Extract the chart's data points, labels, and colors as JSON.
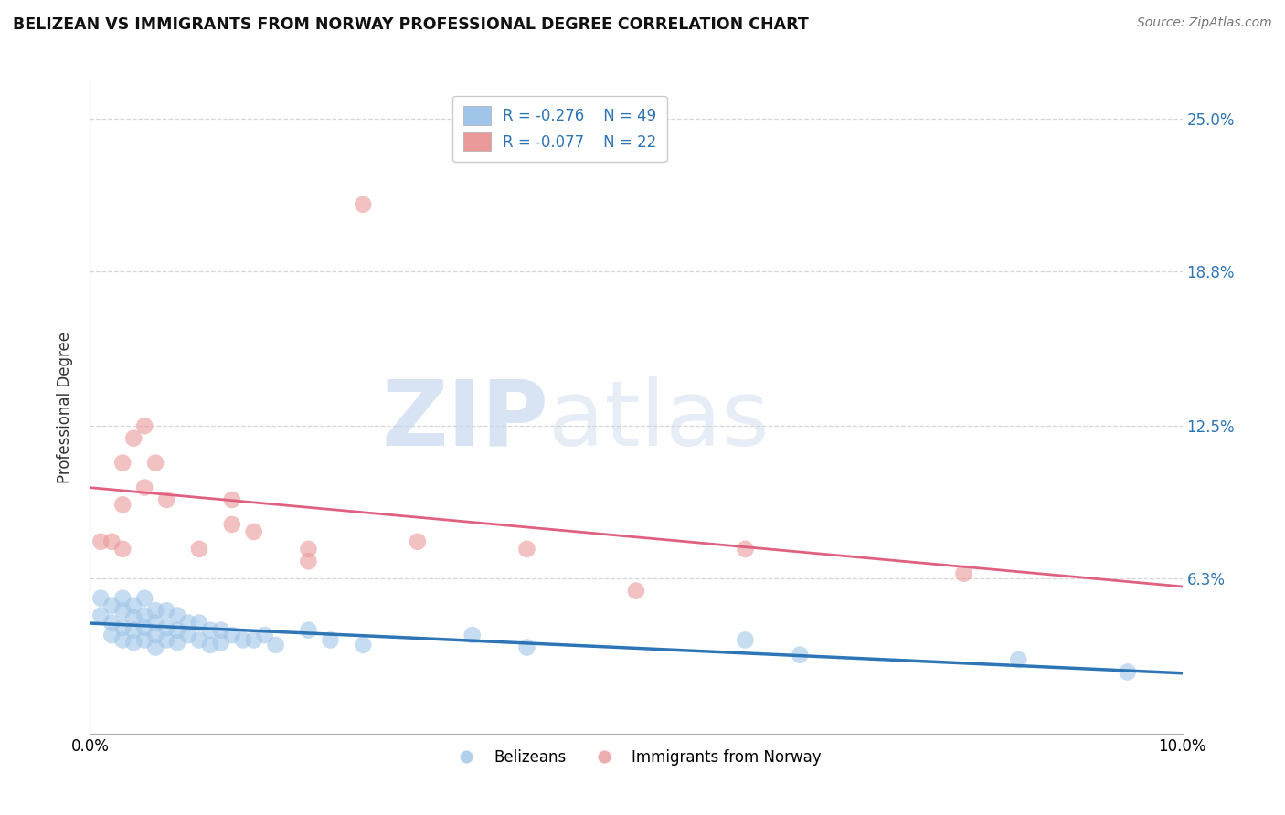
{
  "title": "BELIZEAN VS IMMIGRANTS FROM NORWAY PROFESSIONAL DEGREE CORRELATION CHART",
  "source": "Source: ZipAtlas.com",
  "ylabel_label": "Professional Degree",
  "xlim": [
    0.0,
    0.1
  ],
  "ylim": [
    0.0,
    0.265
  ],
  "ytick_labels_right": [
    "6.3%",
    "12.5%",
    "18.8%",
    "25.0%"
  ],
  "ytick_vals_right": [
    0.063,
    0.125,
    0.188,
    0.25
  ],
  "blue_color": "#9fc5e8",
  "pink_color": "#ea9999",
  "blue_line_color": "#2e75b6",
  "pink_line_color": "#e06080",
  "scatter_alpha": 0.6,
  "blue_points": [
    [
      0.001,
      0.055
    ],
    [
      0.001,
      0.048
    ],
    [
      0.002,
      0.052
    ],
    [
      0.002,
      0.045
    ],
    [
      0.002,
      0.04
    ],
    [
      0.003,
      0.055
    ],
    [
      0.003,
      0.05
    ],
    [
      0.003,
      0.043
    ],
    [
      0.003,
      0.038
    ],
    [
      0.004,
      0.052
    ],
    [
      0.004,
      0.047
    ],
    [
      0.004,
      0.042
    ],
    [
      0.004,
      0.037
    ],
    [
      0.005,
      0.055
    ],
    [
      0.005,
      0.048
    ],
    [
      0.005,
      0.043
    ],
    [
      0.005,
      0.038
    ],
    [
      0.006,
      0.05
    ],
    [
      0.006,
      0.045
    ],
    [
      0.006,
      0.04
    ],
    [
      0.006,
      0.035
    ],
    [
      0.007,
      0.05
    ],
    [
      0.007,
      0.043
    ],
    [
      0.007,
      0.038
    ],
    [
      0.008,
      0.048
    ],
    [
      0.008,
      0.042
    ],
    [
      0.008,
      0.037
    ],
    [
      0.009,
      0.045
    ],
    [
      0.009,
      0.04
    ],
    [
      0.01,
      0.045
    ],
    [
      0.01,
      0.038
    ],
    [
      0.011,
      0.042
    ],
    [
      0.011,
      0.036
    ],
    [
      0.012,
      0.042
    ],
    [
      0.012,
      0.037
    ],
    [
      0.013,
      0.04
    ],
    [
      0.014,
      0.038
    ],
    [
      0.015,
      0.038
    ],
    [
      0.016,
      0.04
    ],
    [
      0.017,
      0.036
    ],
    [
      0.02,
      0.042
    ],
    [
      0.022,
      0.038
    ],
    [
      0.025,
      0.036
    ],
    [
      0.035,
      0.04
    ],
    [
      0.04,
      0.035
    ],
    [
      0.06,
      0.038
    ],
    [
      0.065,
      0.032
    ],
    [
      0.085,
      0.03
    ],
    [
      0.095,
      0.025
    ]
  ],
  "pink_points": [
    [
      0.001,
      0.078
    ],
    [
      0.002,
      0.078
    ],
    [
      0.003,
      0.075
    ],
    [
      0.003,
      0.093
    ],
    [
      0.003,
      0.11
    ],
    [
      0.004,
      0.12
    ],
    [
      0.005,
      0.125
    ],
    [
      0.005,
      0.1
    ],
    [
      0.006,
      0.11
    ],
    [
      0.007,
      0.095
    ],
    [
      0.01,
      0.075
    ],
    [
      0.013,
      0.095
    ],
    [
      0.013,
      0.085
    ],
    [
      0.015,
      0.082
    ],
    [
      0.02,
      0.075
    ],
    [
      0.02,
      0.07
    ],
    [
      0.03,
      0.078
    ],
    [
      0.04,
      0.075
    ],
    [
      0.05,
      0.058
    ],
    [
      0.06,
      0.075
    ],
    [
      0.08,
      0.065
    ],
    [
      0.025,
      0.215
    ]
  ],
  "watermark_zip": "ZIP",
  "watermark_atlas": "atlas",
  "background_color": "#ffffff",
  "grid_color": "#cccccc"
}
